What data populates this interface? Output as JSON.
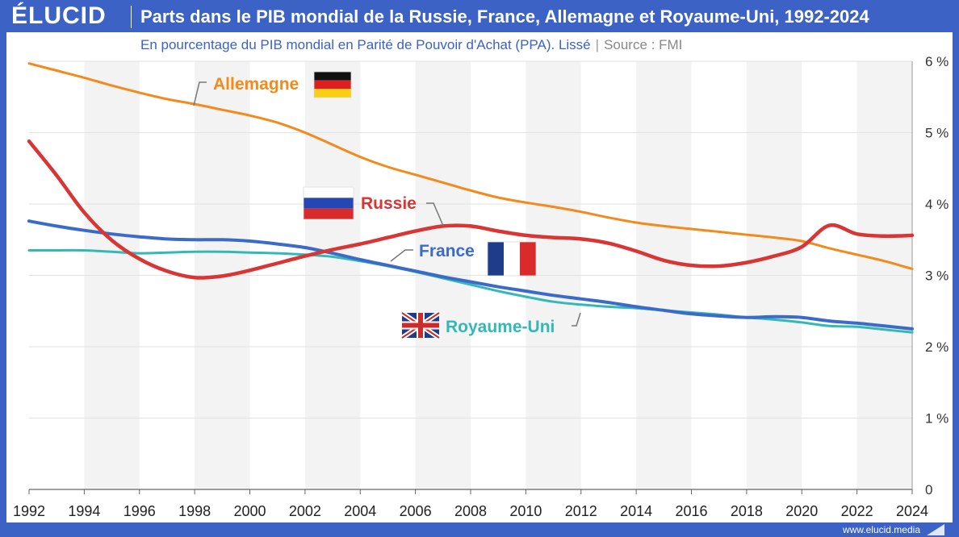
{
  "header": {
    "logo": "ÉLUCID",
    "title": "Parts dans le PIB mondial de la Russie, France, Allemagne et Royaume-Uni, 1992-2024",
    "subtitle": "En pourcentage du PIB mondial en Parité de Pouvoir d'Achat (PPA). Lissé",
    "source": "Source : FMI"
  },
  "footer": {
    "url": "www.elucid.media"
  },
  "chart_data": {
    "type": "line",
    "title": "Parts dans le PIB mondial de la Russie, France, Allemagne et Royaume-Uni, 1992-2024",
    "subtitle": "En pourcentage du PIB mondial en Parité de Pouvoir d'Achat (PPA). Lissé",
    "xlim": [
      1992,
      2024
    ],
    "ylim": [
      0,
      6
    ],
    "x_ticks": [
      "1992",
      "1994",
      "1996",
      "1998",
      "2000",
      "2002",
      "2004",
      "2006",
      "2008",
      "2010",
      "2012",
      "2014",
      "2016",
      "2018",
      "2020",
      "2022",
      "2024"
    ],
    "y_ticks": [
      "0",
      "1 %",
      "2 %",
      "3 %",
      "4 %",
      "5 %",
      "6 %"
    ],
    "y_axis_side": "right",
    "grid": true,
    "x": [
      1992,
      1993,
      1994,
      1995,
      1996,
      1997,
      1998,
      1999,
      2000,
      2001,
      2002,
      2003,
      2004,
      2005,
      2006,
      2007,
      2008,
      2009,
      2010,
      2011,
      2012,
      2013,
      2014,
      2015,
      2016,
      2017,
      2018,
      2019,
      2020,
      2021,
      2022,
      2023,
      2024
    ],
    "series": [
      {
        "name": "Allemagne",
        "color": "#f28a1c",
        "values": [
          5.97,
          5.87,
          5.77,
          5.66,
          5.56,
          5.47,
          5.4,
          5.32,
          5.24,
          5.14,
          5.0,
          4.83,
          4.66,
          4.52,
          4.41,
          4.3,
          4.19,
          4.09,
          4.02,
          3.96,
          3.89,
          3.81,
          3.74,
          3.69,
          3.65,
          3.61,
          3.57,
          3.53,
          3.48,
          3.38,
          3.29,
          3.2,
          3.09
        ],
        "label_flag": "de-flag"
      },
      {
        "name": "Russie",
        "color": "#d93535",
        "values": [
          4.88,
          4.4,
          3.88,
          3.49,
          3.23,
          3.06,
          2.97,
          2.99,
          3.07,
          3.17,
          3.27,
          3.36,
          3.44,
          3.53,
          3.62,
          3.69,
          3.69,
          3.62,
          3.56,
          3.53,
          3.51,
          3.45,
          3.34,
          3.21,
          3.14,
          3.13,
          3.18,
          3.27,
          3.4,
          3.7,
          3.58,
          3.55,
          3.56
        ],
        "label_flag": "ru-flag"
      },
      {
        "name": "France",
        "color": "#3a6bc9",
        "values": [
          3.76,
          3.69,
          3.63,
          3.58,
          3.54,
          3.51,
          3.5,
          3.5,
          3.48,
          3.44,
          3.39,
          3.31,
          3.22,
          3.14,
          3.06,
          2.98,
          2.91,
          2.84,
          2.78,
          2.72,
          2.67,
          2.62,
          2.56,
          2.51,
          2.46,
          2.43,
          2.41,
          2.42,
          2.41,
          2.36,
          2.33,
          2.29,
          2.25
        ],
        "label_flag": "fr-flag"
      },
      {
        "name": "Royaume-Uni",
        "color": "#33b8b8",
        "values": [
          3.35,
          3.35,
          3.35,
          3.33,
          3.31,
          3.32,
          3.33,
          3.33,
          3.32,
          3.31,
          3.29,
          3.26,
          3.2,
          3.13,
          3.05,
          2.96,
          2.87,
          2.78,
          2.7,
          2.63,
          2.59,
          2.56,
          2.54,
          2.51,
          2.48,
          2.45,
          2.41,
          2.38,
          2.34,
          2.29,
          2.28,
          2.24,
          2.2
        ],
        "label_flag": "uk-flag"
      }
    ]
  }
}
